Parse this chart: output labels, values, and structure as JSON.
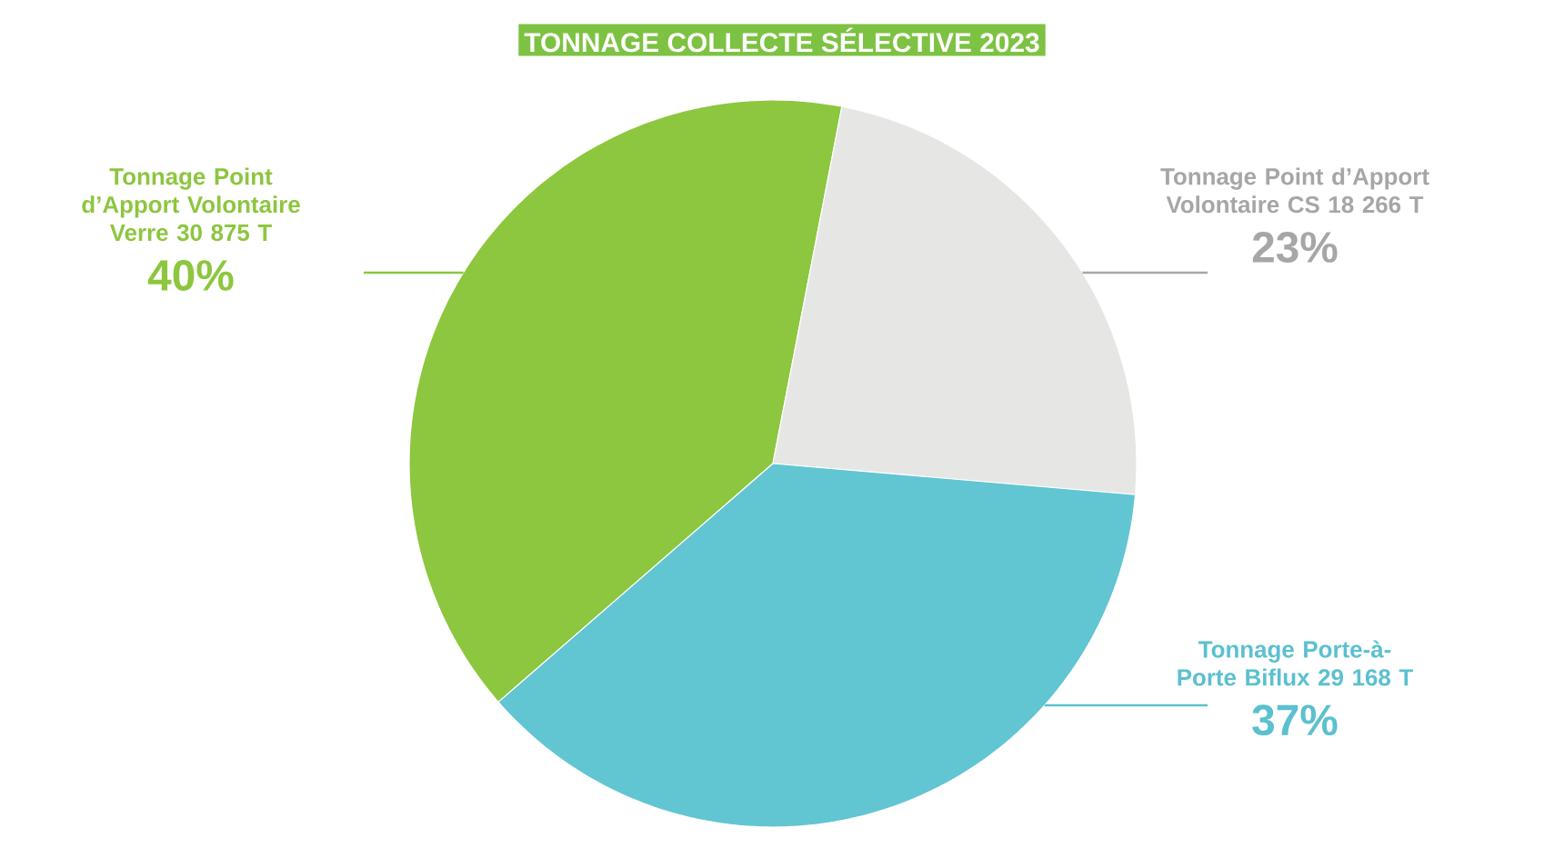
{
  "chart_data": {
    "type": "pie",
    "title": "TONNAGE COLLECTE SÉLECTIVE 2023",
    "categories": [
      "Tonnage Point d’Apport Volontaire Verre",
      "Tonnage Point d’Apport Volontaire CS",
      "Tonnage Porte-à-Porte Biflux"
    ],
    "values": [
      30875,
      18266,
      29168
    ],
    "value_labels": [
      "30 875 T",
      "18 266 T",
      "29 168 T"
    ],
    "colors": [
      "#8dc63f",
      "#e6e6e5",
      "#62c5d2"
    ],
    "annotations": [
      "40%",
      "23%",
      "37%"
    ]
  }
}
